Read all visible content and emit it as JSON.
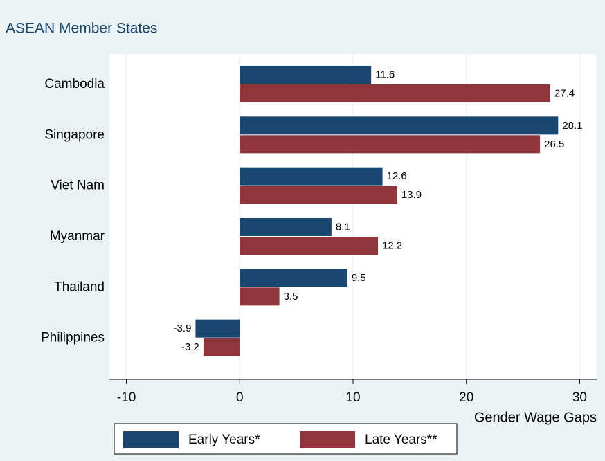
{
  "chart_data": {
    "type": "barh",
    "subtitle": "ASEAN Member States",
    "x_label": "Gender Wage Gaps",
    "categories": [
      "Cambodia",
      "Singapore",
      "Viet Nam",
      "Myanmar",
      "Thailand",
      "Philippines"
    ],
    "series": [
      {
        "name": "Early Years*",
        "color": "#1a476f",
        "values": [
          11.6,
          28.1,
          12.6,
          8.1,
          9.5,
          -3.9
        ]
      },
      {
        "name": "Late Years**",
        "color": "#90353b",
        "values": [
          27.4,
          26.5,
          13.9,
          12.2,
          3.5,
          -3.2
        ]
      }
    ],
    "xlim": [
      -11.5,
      31.5
    ],
    "xticks": [
      -10,
      0,
      10,
      20,
      30
    ],
    "grid": true
  }
}
